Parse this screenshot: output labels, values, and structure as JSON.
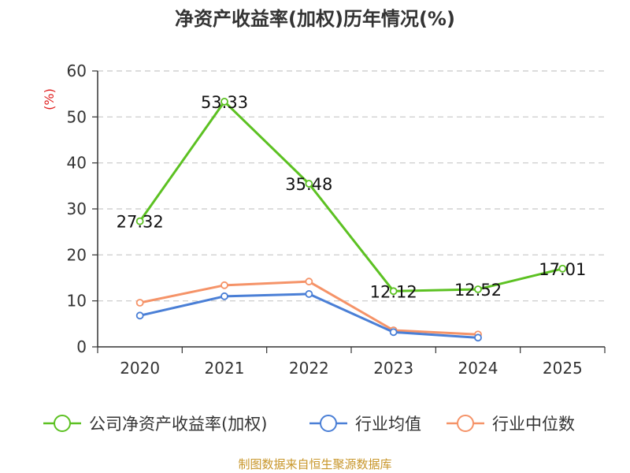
{
  "chart_data": {
    "type": "line",
    "title": "净资产收益率(加权)历年情况(%)",
    "ylabel": "(%)",
    "xlabel": "",
    "categories": [
      "2020",
      "2021",
      "2022",
      "2023",
      "2024",
      "2025"
    ],
    "ylim": [
      0,
      60
    ],
    "yticks": [
      0,
      10,
      20,
      30,
      40,
      50,
      60
    ],
    "grid": true,
    "legend_position": "bottom",
    "series": [
      {
        "name": "公司净资产收益率(加权)",
        "color": "#5cc122",
        "values": [
          27.32,
          53.33,
          35.48,
          12.12,
          12.52,
          17.01
        ],
        "labels": [
          "27.32",
          "53.33",
          "35.48",
          "12.12",
          "12.52",
          "17.01"
        ]
      },
      {
        "name": "行业均值",
        "color": "#4a7fd6",
        "values": [
          6.8,
          11.0,
          11.5,
          3.2,
          2.0,
          null
        ]
      },
      {
        "name": "行业中位数",
        "color": "#f59368",
        "values": [
          9.6,
          13.4,
          14.2,
          3.6,
          2.7,
          null
        ]
      }
    ]
  },
  "footer": "制图数据来自恒生聚源数据库"
}
